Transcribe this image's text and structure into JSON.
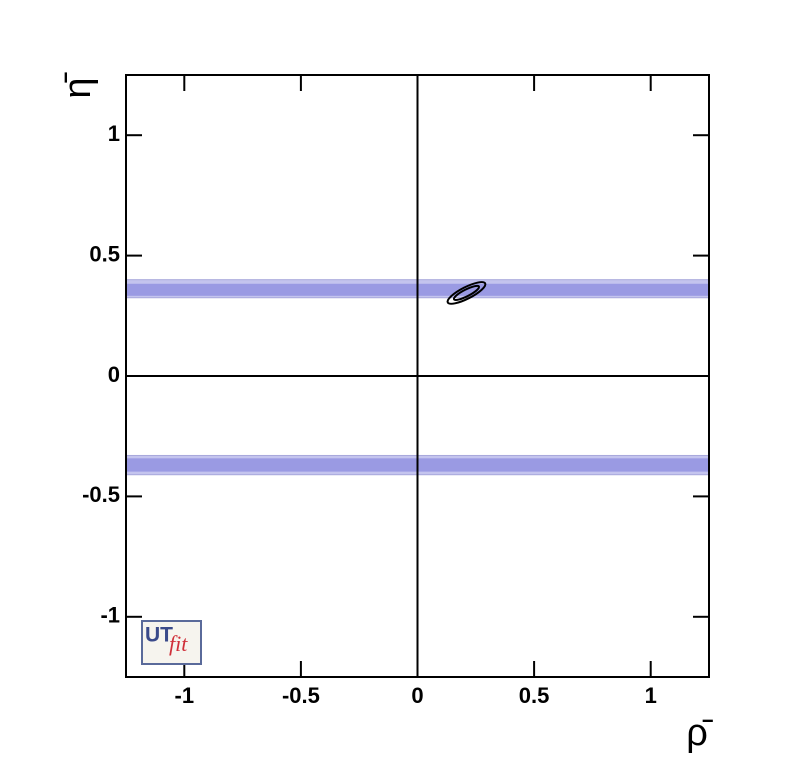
{
  "chart_data": {
    "type": "contour",
    "x_label": "ρ̄",
    "y_label": "η̄",
    "xlim": [
      -1.25,
      1.25
    ],
    "ylim": [
      -1.25,
      1.25
    ],
    "xticks": [
      -1,
      -0.5,
      0,
      0.5,
      1
    ],
    "yticks": [
      -1,
      -0.5,
      0,
      0.5,
      1
    ],
    "bands": [
      {
        "outer": [
          0.325,
          0.4
        ],
        "inner": [
          0.333,
          0.383
        ]
      },
      {
        "outer": [
          -0.41,
          -0.33
        ],
        "inner": [
          -0.397,
          -0.342
        ]
      }
    ],
    "band_colors": {
      "outer": "#c4c4ee",
      "inner": "#9a9ae3"
    },
    "contours": [
      {
        "cx": 0.21,
        "cy": 0.345,
        "rx": 0.09,
        "ry": 0.024,
        "angle": -27
      },
      {
        "cx": 0.21,
        "cy": 0.345,
        "rx": 0.06,
        "ry": 0.014,
        "angle": -27
      }
    ],
    "logo": {
      "main": "UT",
      "sub": "fit"
    }
  }
}
